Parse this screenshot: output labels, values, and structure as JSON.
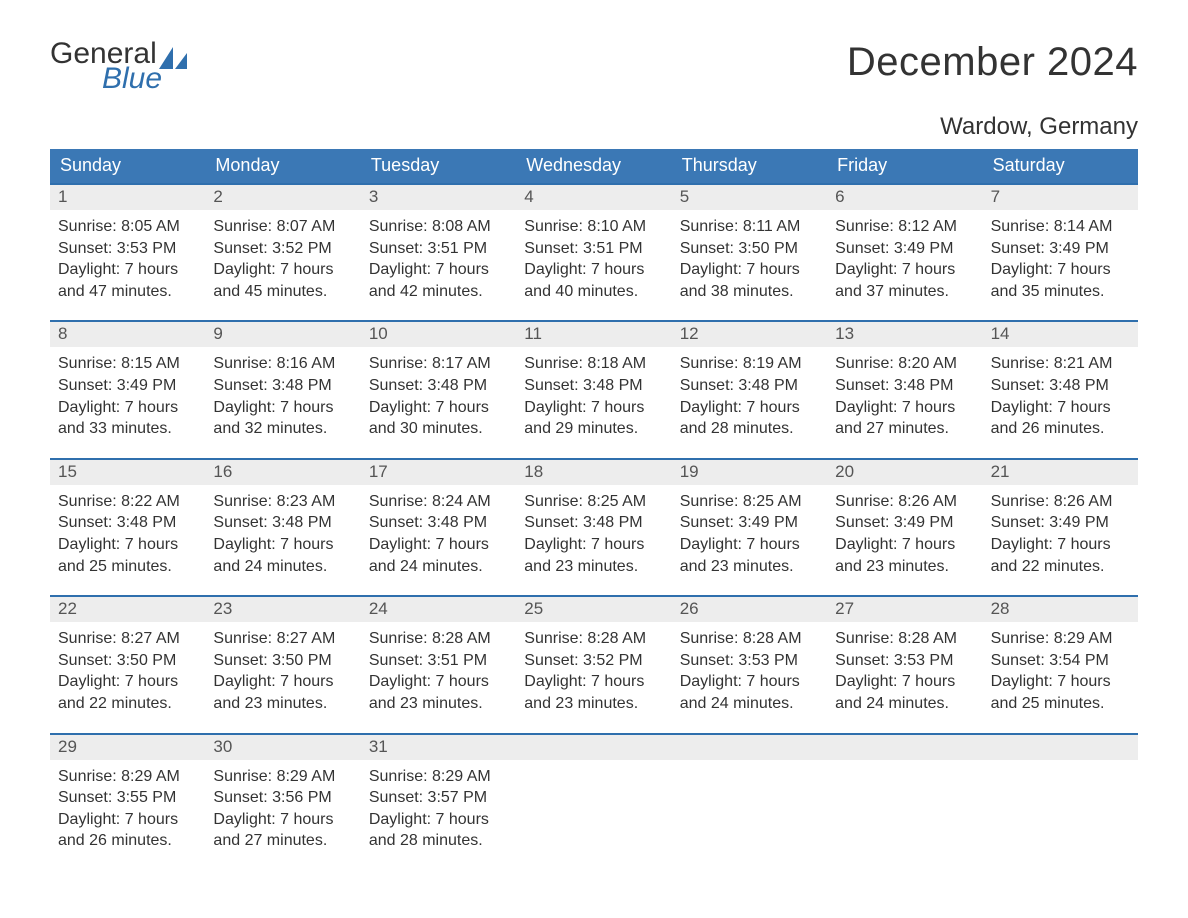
{
  "brand": {
    "word1": "General",
    "word2": "Blue",
    "sail_color": "#2f6fad"
  },
  "title": "December 2024",
  "location": "Wardow, Germany",
  "colors": {
    "header_bg": "#3b78b5",
    "header_text": "#ffffff",
    "week_border": "#2f6fad",
    "daynum_bg": "#ededed",
    "text": "#333333",
    "page_bg": "#ffffff"
  },
  "fonts": {
    "title_size_pt": 30,
    "location_size_pt": 18,
    "dow_size_pt": 14,
    "body_size_pt": 12
  },
  "days_of_week": [
    "Sunday",
    "Monday",
    "Tuesday",
    "Wednesday",
    "Thursday",
    "Friday",
    "Saturday"
  ],
  "labels": {
    "sunrise": "Sunrise:",
    "sunset": "Sunset:",
    "daylight": "Daylight:"
  },
  "weeks": [
    [
      {
        "n": "1",
        "sunrise": "8:05 AM",
        "sunset": "3:53 PM",
        "daylight": "7 hours and 47 minutes."
      },
      {
        "n": "2",
        "sunrise": "8:07 AM",
        "sunset": "3:52 PM",
        "daylight": "7 hours and 45 minutes."
      },
      {
        "n": "3",
        "sunrise": "8:08 AM",
        "sunset": "3:51 PM",
        "daylight": "7 hours and 42 minutes."
      },
      {
        "n": "4",
        "sunrise": "8:10 AM",
        "sunset": "3:51 PM",
        "daylight": "7 hours and 40 minutes."
      },
      {
        "n": "5",
        "sunrise": "8:11 AM",
        "sunset": "3:50 PM",
        "daylight": "7 hours and 38 minutes."
      },
      {
        "n": "6",
        "sunrise": "8:12 AM",
        "sunset": "3:49 PM",
        "daylight": "7 hours and 37 minutes."
      },
      {
        "n": "7",
        "sunrise": "8:14 AM",
        "sunset": "3:49 PM",
        "daylight": "7 hours and 35 minutes."
      }
    ],
    [
      {
        "n": "8",
        "sunrise": "8:15 AM",
        "sunset": "3:49 PM",
        "daylight": "7 hours and 33 minutes."
      },
      {
        "n": "9",
        "sunrise": "8:16 AM",
        "sunset": "3:48 PM",
        "daylight": "7 hours and 32 minutes."
      },
      {
        "n": "10",
        "sunrise": "8:17 AM",
        "sunset": "3:48 PM",
        "daylight": "7 hours and 30 minutes."
      },
      {
        "n": "11",
        "sunrise": "8:18 AM",
        "sunset": "3:48 PM",
        "daylight": "7 hours and 29 minutes."
      },
      {
        "n": "12",
        "sunrise": "8:19 AM",
        "sunset": "3:48 PM",
        "daylight": "7 hours and 28 minutes."
      },
      {
        "n": "13",
        "sunrise": "8:20 AM",
        "sunset": "3:48 PM",
        "daylight": "7 hours and 27 minutes."
      },
      {
        "n": "14",
        "sunrise": "8:21 AM",
        "sunset": "3:48 PM",
        "daylight": "7 hours and 26 minutes."
      }
    ],
    [
      {
        "n": "15",
        "sunrise": "8:22 AM",
        "sunset": "3:48 PM",
        "daylight": "7 hours and 25 minutes."
      },
      {
        "n": "16",
        "sunrise": "8:23 AM",
        "sunset": "3:48 PM",
        "daylight": "7 hours and 24 minutes."
      },
      {
        "n": "17",
        "sunrise": "8:24 AM",
        "sunset": "3:48 PM",
        "daylight": "7 hours and 24 minutes."
      },
      {
        "n": "18",
        "sunrise": "8:25 AM",
        "sunset": "3:48 PM",
        "daylight": "7 hours and 23 minutes."
      },
      {
        "n": "19",
        "sunrise": "8:25 AM",
        "sunset": "3:49 PM",
        "daylight": "7 hours and 23 minutes."
      },
      {
        "n": "20",
        "sunrise": "8:26 AM",
        "sunset": "3:49 PM",
        "daylight": "7 hours and 23 minutes."
      },
      {
        "n": "21",
        "sunrise": "8:26 AM",
        "sunset": "3:49 PM",
        "daylight": "7 hours and 22 minutes."
      }
    ],
    [
      {
        "n": "22",
        "sunrise": "8:27 AM",
        "sunset": "3:50 PM",
        "daylight": "7 hours and 22 minutes."
      },
      {
        "n": "23",
        "sunrise": "8:27 AM",
        "sunset": "3:50 PM",
        "daylight": "7 hours and 23 minutes."
      },
      {
        "n": "24",
        "sunrise": "8:28 AM",
        "sunset": "3:51 PM",
        "daylight": "7 hours and 23 minutes."
      },
      {
        "n": "25",
        "sunrise": "8:28 AM",
        "sunset": "3:52 PM",
        "daylight": "7 hours and 23 minutes."
      },
      {
        "n": "26",
        "sunrise": "8:28 AM",
        "sunset": "3:53 PM",
        "daylight": "7 hours and 24 minutes."
      },
      {
        "n": "27",
        "sunrise": "8:28 AM",
        "sunset": "3:53 PM",
        "daylight": "7 hours and 24 minutes."
      },
      {
        "n": "28",
        "sunrise": "8:29 AM",
        "sunset": "3:54 PM",
        "daylight": "7 hours and 25 minutes."
      }
    ],
    [
      {
        "n": "29",
        "sunrise": "8:29 AM",
        "sunset": "3:55 PM",
        "daylight": "7 hours and 26 minutes."
      },
      {
        "n": "30",
        "sunrise": "8:29 AM",
        "sunset": "3:56 PM",
        "daylight": "7 hours and 27 minutes."
      },
      {
        "n": "31",
        "sunrise": "8:29 AM",
        "sunset": "3:57 PM",
        "daylight": "7 hours and 28 minutes."
      },
      null,
      null,
      null,
      null
    ]
  ]
}
